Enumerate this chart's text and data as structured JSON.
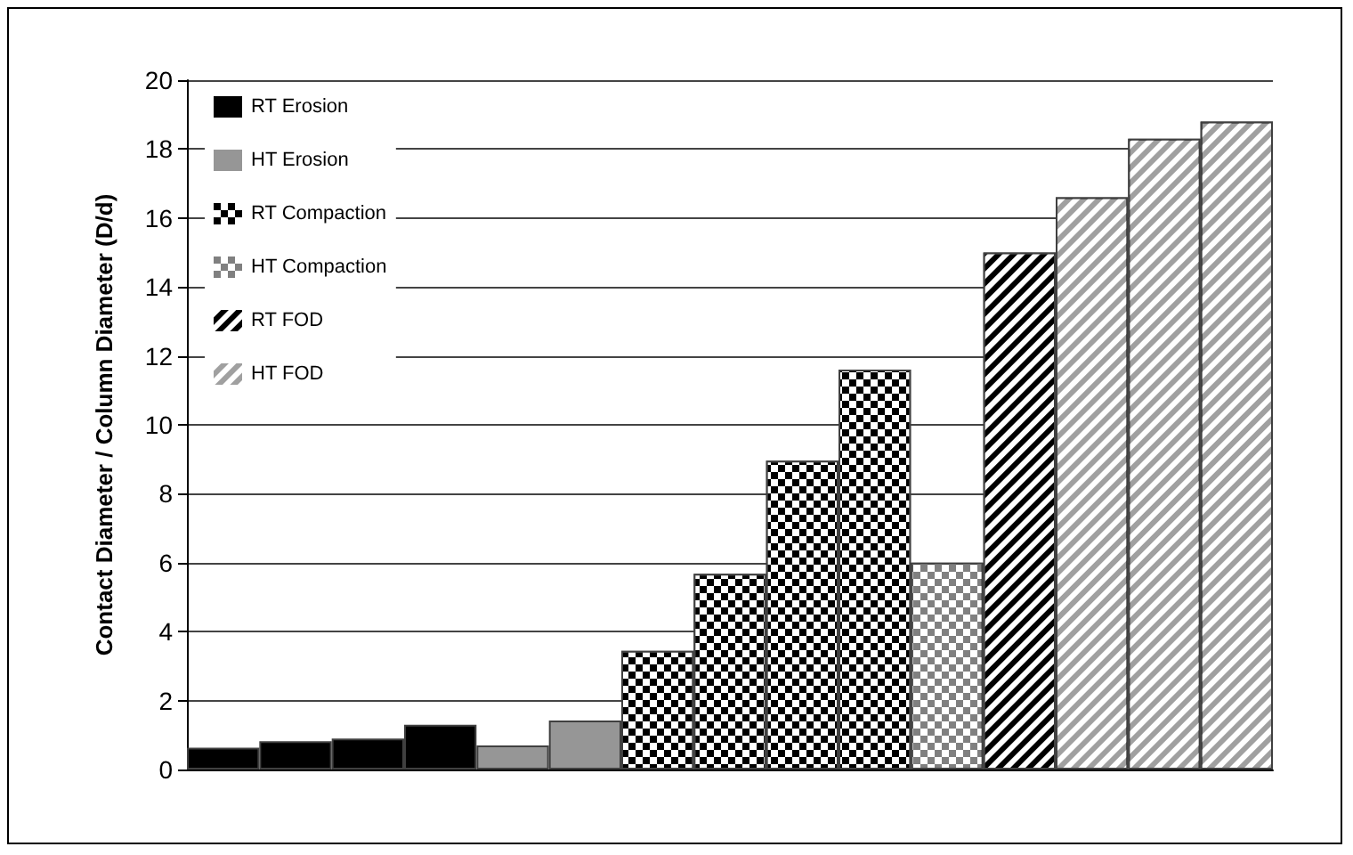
{
  "chart_data": {
    "type": "bar",
    "ylabel": "Contact Diameter / Column Diameter (D/d)",
    "categories": [
      null,
      null,
      null,
      null,
      null,
      null,
      null,
      null,
      null,
      null,
      null,
      null,
      null,
      null,
      null
    ],
    "series": [
      {
        "name": "RT Erosion",
        "color": "#000000",
        "values": [
          0.63,
          0.82,
          0.9,
          1.3,
          null,
          null,
          null,
          null,
          null,
          null,
          null,
          null,
          null,
          null,
          null
        ]
      },
      {
        "name": "HT Erosion",
        "color": "#969696",
        "values": [
          null,
          null,
          null,
          null,
          0.7,
          1.42,
          null,
          null,
          null,
          null,
          null,
          null,
          null,
          null,
          null
        ]
      },
      {
        "name": "RT Compaction",
        "color": "#000000",
        "values": [
          null,
          null,
          null,
          null,
          null,
          null,
          3.44,
          5.68,
          8.96,
          11.6,
          null,
          null,
          null,
          null,
          null
        ]
      },
      {
        "name": "HT Compaction",
        "color": "#808080",
        "values": [
          null,
          null,
          null,
          null,
          null,
          null,
          null,
          null,
          null,
          null,
          6.0,
          null,
          null,
          null,
          null
        ]
      },
      {
        "name": "RT FOD",
        "color": "#000000",
        "values": [
          null,
          null,
          null,
          null,
          null,
          null,
          null,
          null,
          null,
          null,
          null,
          15.0,
          null,
          null,
          null
        ]
      },
      {
        "name": "HT FOD",
        "color": "#a0a0a0",
        "values": [
          null,
          null,
          null,
          null,
          null,
          null,
          null,
          null,
          null,
          null,
          null,
          null,
          16.6,
          18.3,
          18.8
        ]
      }
    ],
    "ylim": [
      0,
      20
    ],
    "yticks": [
      0,
      2,
      4,
      6,
      8,
      10,
      12,
      14,
      16,
      18,
      20
    ],
    "grid": "y",
    "legend": "top left"
  }
}
